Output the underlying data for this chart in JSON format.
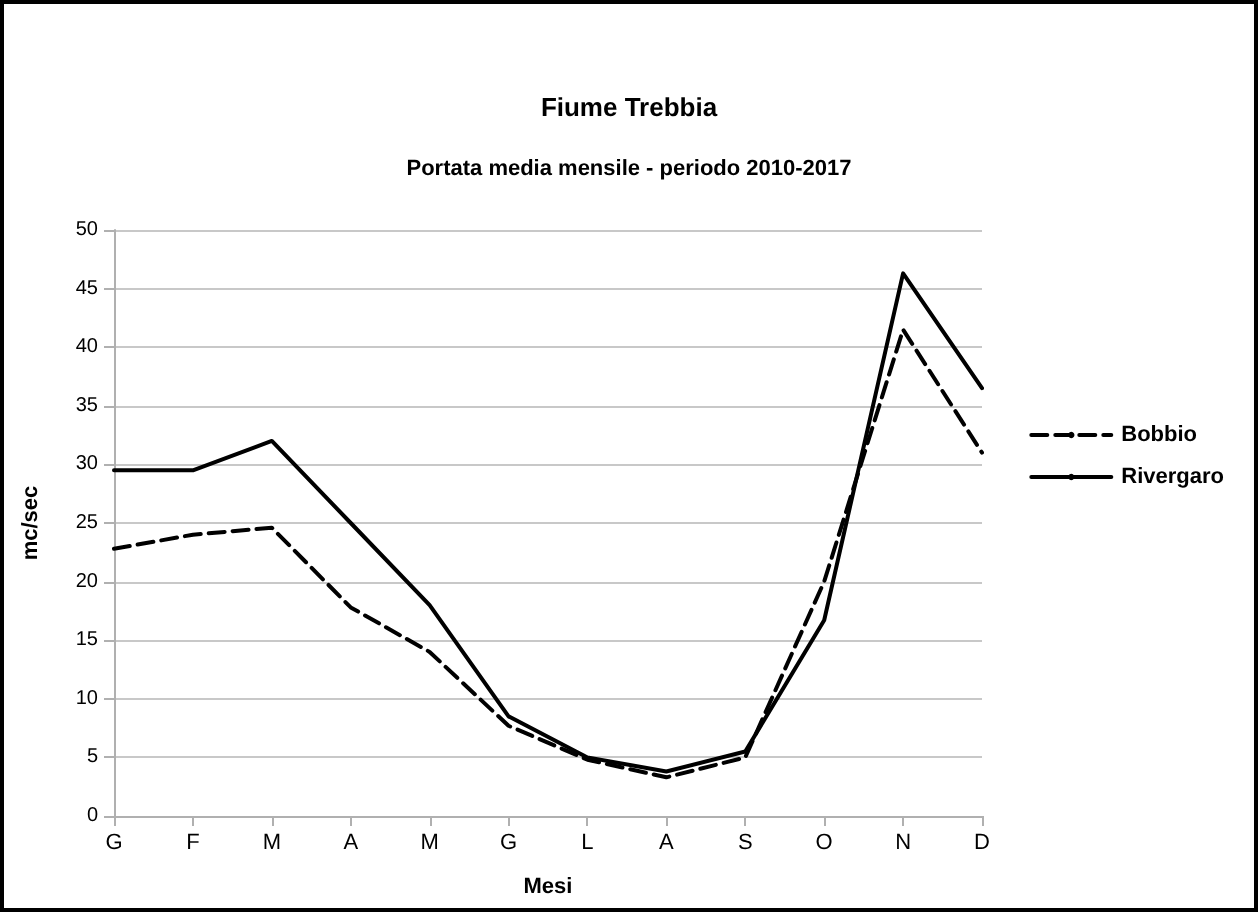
{
  "chart_data": {
    "type": "line",
    "title": "Fiume Trebbia",
    "subtitle": "Portata media mensile - periodo 2010-2017",
    "xlabel": "Mesi",
    "ylabel": "mc/sec",
    "categories": [
      "G",
      "F",
      "M",
      "A",
      "M",
      "G",
      "L",
      "A",
      "S",
      "O",
      "N",
      "D"
    ],
    "series": [
      {
        "name": "Bobbio",
        "color": "#000000",
        "line_style": "dashed",
        "values": [
          22.8,
          24,
          24.6,
          17.8,
          14,
          7.7,
          4.8,
          3.3,
          5,
          20,
          41.5,
          31
        ]
      },
      {
        "name": "Rivergaro",
        "color": "#000000",
        "line_style": "solid",
        "values": [
          29.5,
          29.5,
          32,
          25,
          18,
          8.5,
          5,
          3.8,
          5.5,
          16.7,
          46.3,
          36.5
        ]
      }
    ],
    "ylim": [
      0,
      50
    ],
    "yticks": [
      0,
      5,
      10,
      15,
      20,
      25,
      30,
      35,
      40,
      45,
      50
    ],
    "grid": "y",
    "legend": "right",
    "marker": "none"
  }
}
